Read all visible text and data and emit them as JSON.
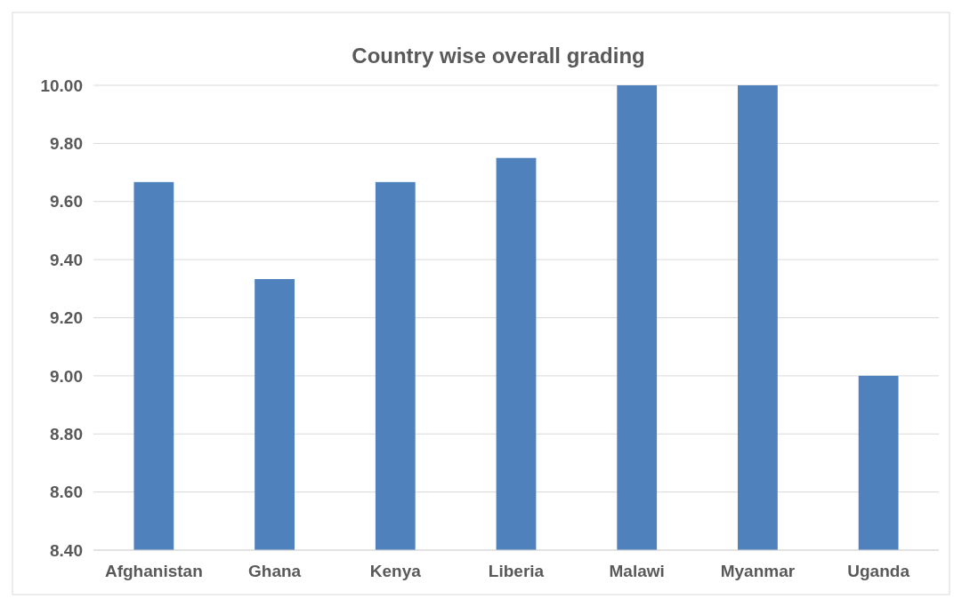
{
  "chart_data": {
    "type": "bar",
    "title": "Country wise overall grading",
    "categories": [
      "Afghanistan",
      "Ghana",
      "Kenya",
      "Liberia",
      "Malawi",
      "Myanmar",
      "Uganda"
    ],
    "values": [
      9.667,
      9.333,
      9.667,
      9.75,
      10,
      10,
      9
    ],
    "color": "#4f81bd",
    "ylim": [
      8.4,
      10
    ],
    "yticks": [
      {
        "value": 8.4,
        "label": "8.40"
      },
      {
        "value": 8.6,
        "label": "8.60"
      },
      {
        "value": 8.8,
        "label": "8.80"
      },
      {
        "value": 9,
        "label": "9.00"
      },
      {
        "value": 9.2,
        "label": "9.20"
      },
      {
        "value": 9.4,
        "label": "9.40"
      },
      {
        "value": 9.6,
        "label": "9.60"
      },
      {
        "value": 9.8,
        "label": "9.80"
      },
      {
        "value": 10,
        "label": "10.00"
      }
    ],
    "grid": "y"
  }
}
